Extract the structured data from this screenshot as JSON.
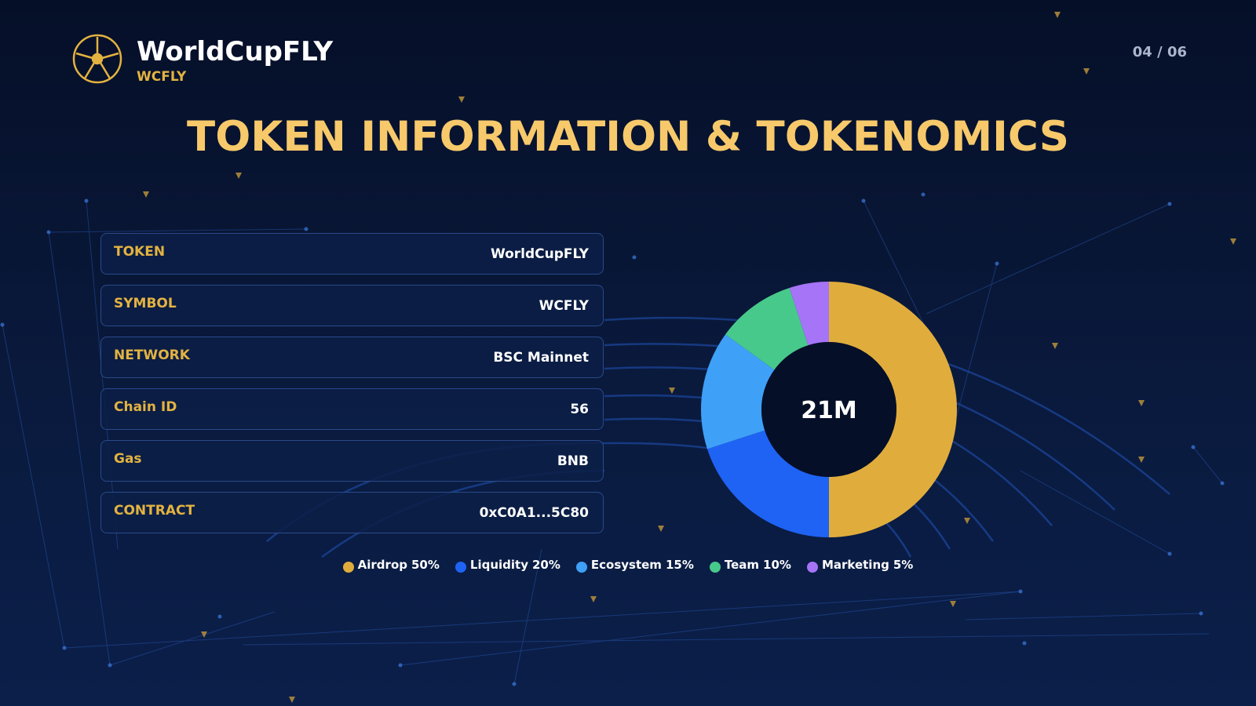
{
  "header": {
    "brand": "WorldCupFLY",
    "ticker": "WCFLY",
    "page": "04 / 06"
  },
  "title": "TOKEN INFORMATION & TOKENOMICS",
  "table": {
    "rows": [
      [
        "TOKEN",
        "WorldCupFLY"
      ],
      [
        "SYMBOL",
        "WCFLY"
      ],
      [
        "NETWORK",
        "BSC Mainnet"
      ],
      [
        "Chain ID",
        "56"
      ],
      [
        "Gas",
        "BNB"
      ],
      [
        "CONTRACT",
        "0xC0A1...5C80"
      ]
    ]
  },
  "chart_data": {
    "type": "donut",
    "center_label": "21M",
    "categories": [
      "Airdrop",
      "Liquidity",
      "Ecosystem",
      "Team",
      "Marketing"
    ],
    "values": [
      50,
      20,
      15,
      10,
      5
    ],
    "value_labels": [
      "50%",
      "20%",
      "15%",
      "10%",
      "5%"
    ],
    "colors": [
      "#e0ad3c",
      "#1f63f5",
      "#3fa0f7",
      "#47c98b",
      "#a574f7"
    ]
  }
}
